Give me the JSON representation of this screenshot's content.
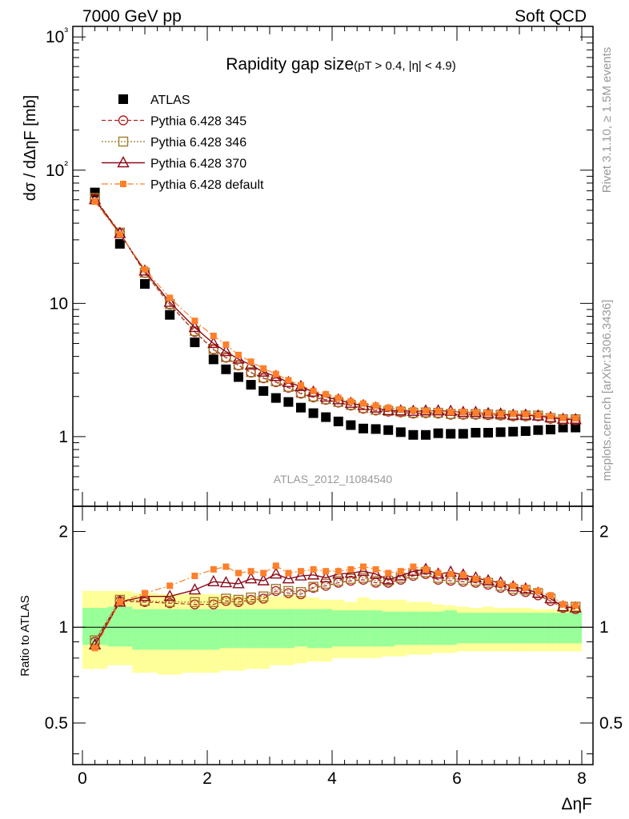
{
  "header": {
    "energy_label": "7000 GeV pp",
    "process_label": "Soft QCD"
  },
  "side_labels": {
    "rivet": "Rivet 3.1.10, ≥ 1.5M events",
    "mcplots": "mcplots.cern.ch [arXiv:1306.3436]"
  },
  "watermark": "ATLAS_2012_I1084540",
  "chart_data": [
    {
      "type": "scatter",
      "panel": "main",
      "title": "Rapidity gap size",
      "title_suffix": "(pT > 0.4, |η| < 4.9)",
      "ylabel": "dσ / dΔηF [mb]",
      "xlabel": "ΔηF",
      "yscale": "log",
      "ylim": [
        0.3,
        1200
      ],
      "xlim": [
        -0.2,
        8.2
      ],
      "y_tick_labels": [
        "1",
        "10",
        "10²",
        "10³"
      ],
      "legend_position": "top-left",
      "x": [
        0.2,
        0.6,
        1.0,
        1.4,
        1.8,
        2.1,
        2.3,
        2.5,
        2.7,
        2.9,
        3.1,
        3.3,
        3.5,
        3.7,
        3.9,
        4.1,
        4.3,
        4.5,
        4.7,
        4.9,
        5.1,
        5.3,
        5.5,
        5.7,
        5.9,
        6.1,
        6.3,
        6.5,
        6.7,
        6.9,
        7.1,
        7.3,
        7.5,
        7.7,
        7.9
      ],
      "series": [
        {
          "name": "ATLAS",
          "color": "#000000",
          "marker": "filled-square",
          "values": [
            68,
            28,
            14,
            8.2,
            5.1,
            3.8,
            3.2,
            2.8,
            2.45,
            2.2,
            1.95,
            1.82,
            1.65,
            1.5,
            1.4,
            1.3,
            1.22,
            1.15,
            1.14,
            1.12,
            1.08,
            1.03,
            1.03,
            1.06,
            1.05,
            1.05,
            1.07,
            1.07,
            1.08,
            1.09,
            1.1,
            1.12,
            1.13,
            1.17,
            1.17
          ]
        },
        {
          "name": "Pythia 6.428 345",
          "color": "#b22222",
          "marker": "open-circle",
          "values": [
            61.2,
            33.9,
            16.9,
            9.8,
            6.1,
            4.5,
            3.91,
            3.42,
            3.02,
            2.74,
            2.56,
            2.33,
            2.1,
            1.97,
            1.89,
            1.8,
            1.71,
            1.62,
            1.57,
            1.54,
            1.52,
            1.49,
            1.5,
            1.49,
            1.46,
            1.46,
            1.46,
            1.45,
            1.44,
            1.42,
            1.42,
            1.42,
            1.36,
            1.33,
            1.33
          ]
        },
        {
          "name": "Pythia 6.428 346",
          "color": "#a07a2a",
          "marker": "open-square",
          "values": [
            62,
            34,
            17,
            9.9,
            6.2,
            4.55,
            3.95,
            3.45,
            3.05,
            2.77,
            2.6,
            2.36,
            2.13,
            2.0,
            1.91,
            1.82,
            1.73,
            1.64,
            1.59,
            1.56,
            1.54,
            1.51,
            1.52,
            1.51,
            1.48,
            1.48,
            1.48,
            1.47,
            1.46,
            1.44,
            1.44,
            1.44,
            1.38,
            1.35,
            1.35
          ]
        },
        {
          "name": "Pythia 6.428 370",
          "color": "#8b0a1a",
          "marker": "open-triangle",
          "values": [
            60,
            33.5,
            17.5,
            10.2,
            6.6,
            5.0,
            4.35,
            3.82,
            3.45,
            3.05,
            2.83,
            2.55,
            2.38,
            2.16,
            1.98,
            1.89,
            1.78,
            1.71,
            1.64,
            1.57,
            1.56,
            1.55,
            1.56,
            1.56,
            1.55,
            1.52,
            1.52,
            1.49,
            1.48,
            1.45,
            1.45,
            1.43,
            1.39,
            1.35,
            1.34
          ]
        },
        {
          "name": "Pythia 6.428 default",
          "color": "#ff7f2a",
          "marker": "filled-small-square",
          "values": [
            58,
            33,
            18,
            11,
            7.4,
            5.7,
            4.9,
            4.1,
            3.65,
            3.25,
            2.95,
            2.65,
            2.43,
            2.2,
            2.08,
            1.95,
            1.84,
            1.77,
            1.71,
            1.65,
            1.6,
            1.58,
            1.56,
            1.55,
            1.53,
            1.53,
            1.52,
            1.5,
            1.48,
            1.48,
            1.47,
            1.45,
            1.42,
            1.38,
            1.37
          ]
        }
      ]
    },
    {
      "type": "scatter",
      "panel": "ratio",
      "ylabel": "Ratio to ATLAS",
      "yscale": "log",
      "ylim": [
        0.37,
        2.4
      ],
      "y_tick_labels": [
        "0.5",
        "1",
        "2"
      ],
      "x_tick_labels": [
        "0",
        "2",
        "4",
        "6",
        "8"
      ],
      "band_edges": [
        0.0,
        0.4,
        0.8,
        1.2,
        1.6,
        2.0,
        2.2,
        2.4,
        2.6,
        2.8,
        3.0,
        3.2,
        3.4,
        3.6,
        3.8,
        4.0,
        4.2,
        4.4,
        4.6,
        4.8,
        5.0,
        5.2,
        5.4,
        5.6,
        5.8,
        6.0,
        6.2,
        6.4,
        6.6,
        6.8,
        7.0,
        7.2,
        7.4,
        7.6,
        7.8,
        8.0
      ],
      "stat_band_up": [
        1.15,
        1.16,
        1.14,
        1.14,
        1.14,
        1.14,
        1.14,
        1.14,
        1.14,
        1.14,
        1.14,
        1.14,
        1.14,
        1.14,
        1.14,
        1.13,
        1.13,
        1.13,
        1.13,
        1.12,
        1.12,
        1.12,
        1.12,
        1.12,
        1.13,
        1.11,
        1.11,
        1.11,
        1.11,
        1.11,
        1.11,
        1.11,
        1.11,
        1.11,
        1.11
      ],
      "stat_band_down": [
        0.88,
        0.87,
        0.85,
        0.85,
        0.85,
        0.85,
        0.86,
        0.86,
        0.86,
        0.86,
        0.86,
        0.86,
        0.87,
        0.86,
        0.86,
        0.87,
        0.87,
        0.87,
        0.87,
        0.87,
        0.88,
        0.88,
        0.88,
        0.88,
        0.88,
        0.89,
        0.89,
        0.89,
        0.89,
        0.89,
        0.89,
        0.89,
        0.89,
        0.89,
        0.89
      ],
      "syst_band_up": [
        1.3,
        1.3,
        1.28,
        1.27,
        1.27,
        1.27,
        1.26,
        1.26,
        1.25,
        1.25,
        1.25,
        1.26,
        1.25,
        1.24,
        1.22,
        1.22,
        1.2,
        1.24,
        1.22,
        1.22,
        1.22,
        1.2,
        1.2,
        1.18,
        1.17,
        1.16,
        1.15,
        1.16,
        1.15,
        1.15,
        1.15,
        1.14,
        1.14,
        1.14,
        1.14
      ],
      "syst_band_down": [
        0.74,
        0.76,
        0.72,
        0.71,
        0.72,
        0.72,
        0.73,
        0.73,
        0.74,
        0.74,
        0.76,
        0.76,
        0.77,
        0.78,
        0.78,
        0.8,
        0.8,
        0.8,
        0.8,
        0.81,
        0.81,
        0.82,
        0.82,
        0.83,
        0.83,
        0.84,
        0.84,
        0.84,
        0.84,
        0.84,
        0.84,
        0.84,
        0.84,
        0.84,
        0.84
      ],
      "series": [
        {
          "name": "Pythia 6.428 345",
          "values": [
            0.9,
            1.21,
            1.2,
            1.19,
            1.18,
            1.18,
            1.21,
            1.2,
            1.22,
            1.23,
            1.3,
            1.28,
            1.27,
            1.33,
            1.35,
            1.38,
            1.4,
            1.41,
            1.38,
            1.38,
            1.41,
            1.45,
            1.47,
            1.41,
            1.4,
            1.39,
            1.38,
            1.36,
            1.33,
            1.3,
            1.29,
            1.26,
            1.21,
            1.15,
            1.14
          ]
        },
        {
          "name": "Pythia 6.428 346",
          "values": [
            0.91,
            1.22,
            1.21,
            1.2,
            1.2,
            1.2,
            1.23,
            1.22,
            1.24,
            1.25,
            1.32,
            1.3,
            1.29,
            1.34,
            1.37,
            1.4,
            1.42,
            1.43,
            1.4,
            1.4,
            1.43,
            1.47,
            1.49,
            1.43,
            1.42,
            1.41,
            1.4,
            1.38,
            1.35,
            1.32,
            1.31,
            1.28,
            1.23,
            1.16,
            1.16
          ]
        },
        {
          "name": "Pythia 6.428 370",
          "values": [
            0.88,
            1.2,
            1.25,
            1.25,
            1.31,
            1.39,
            1.38,
            1.37,
            1.42,
            1.4,
            1.47,
            1.42,
            1.45,
            1.46,
            1.43,
            1.47,
            1.48,
            1.5,
            1.47,
            1.41,
            1.45,
            1.5,
            1.52,
            1.47,
            1.49,
            1.46,
            1.43,
            1.4,
            1.38,
            1.34,
            1.32,
            1.28,
            1.23,
            1.16,
            1.15
          ]
        },
        {
          "name": "Pythia 6.428 default",
          "values": [
            0.86,
            1.2,
            1.28,
            1.35,
            1.45,
            1.52,
            1.55,
            1.48,
            1.5,
            1.48,
            1.56,
            1.48,
            1.5,
            1.52,
            1.5,
            1.5,
            1.52,
            1.55,
            1.52,
            1.48,
            1.5,
            1.55,
            1.52,
            1.48,
            1.47,
            1.46,
            1.42,
            1.4,
            1.37,
            1.35,
            1.33,
            1.3,
            1.26,
            1.18,
            1.17
          ]
        }
      ]
    }
  ]
}
